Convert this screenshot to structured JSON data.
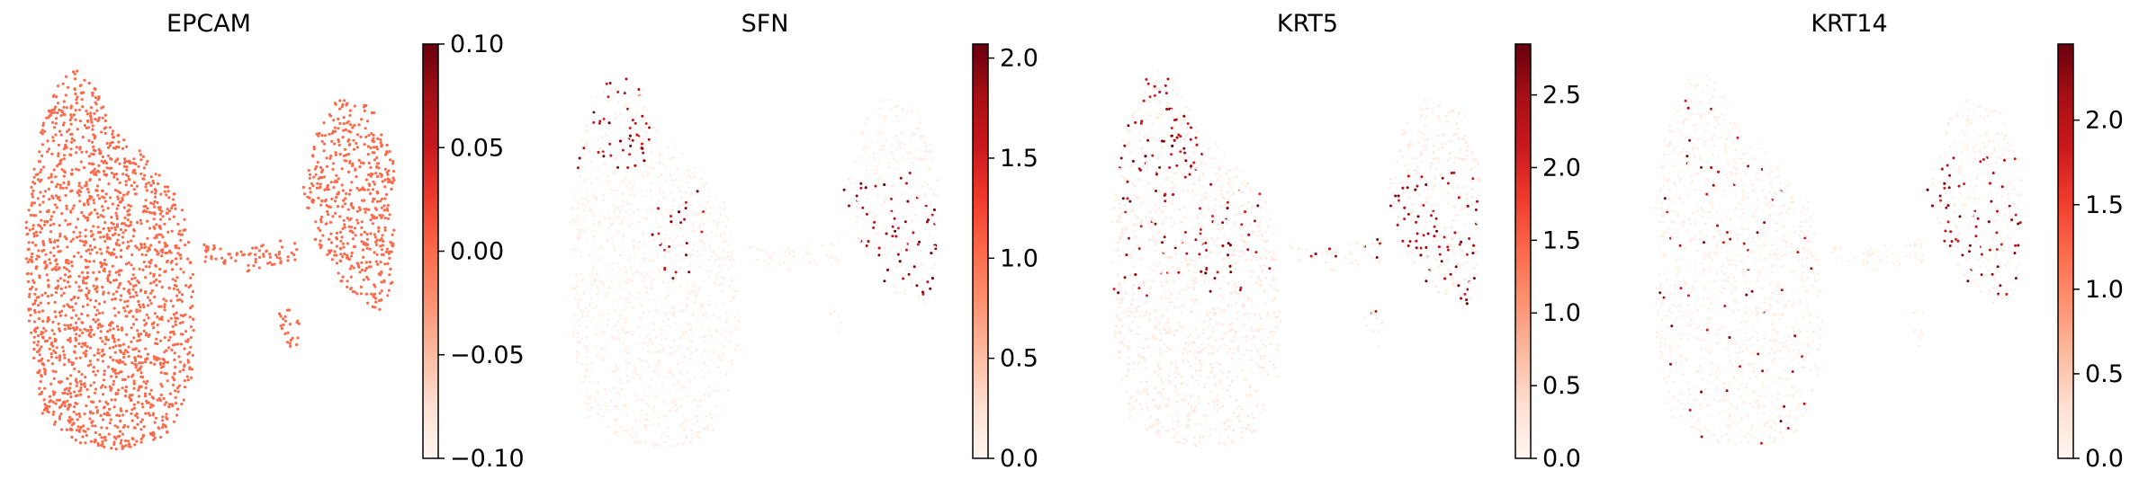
{
  "chart_data": [
    {
      "type": "scatter",
      "title": "EPCAM",
      "colormap": "Reds",
      "colorbar": {
        "vmin": -0.1,
        "vmax": 0.1,
        "ticks": [
          "0.10",
          "0.05",
          "0.00",
          "−0.05",
          "−0.10"
        ],
        "tick_values": [
          0.1,
          0.05,
          0.0,
          -0.05,
          -0.1
        ]
      },
      "expression": {
        "dominant_value": 0.0,
        "point_color": "#fb6a4a",
        "uniform": true
      },
      "xlabel": "",
      "ylabel": "",
      "axes_visible": false
    },
    {
      "type": "scatter",
      "title": "SFN",
      "colormap": "Reds",
      "colorbar": {
        "vmin": 0.0,
        "vmax": 2.07,
        "ticks": [
          "2.0",
          "1.5",
          "1.0",
          "0.5",
          "0.0"
        ],
        "tick_values": [
          2.0,
          1.5,
          1.0,
          0.5,
          0.0
        ]
      },
      "expression": {
        "dominant_value": 0.0,
        "high_value_regions": [
          "upper-left of left cluster",
          "center of right cluster"
        ],
        "uniform": false
      },
      "xlabel": "",
      "ylabel": "",
      "axes_visible": false
    },
    {
      "type": "scatter",
      "title": "KRT5",
      "colormap": "Reds",
      "colorbar": {
        "vmin": 0.0,
        "vmax": 2.85,
        "ticks": [
          "2.5",
          "2.0",
          "1.5",
          "1.0",
          "0.5",
          "0.0"
        ],
        "tick_values": [
          2.5,
          2.0,
          1.5,
          1.0,
          0.5,
          0.0
        ]
      },
      "expression": {
        "dominant_value": 0.3,
        "high_value_regions": [
          "upper-left of left cluster",
          "right cluster"
        ],
        "uniform": false
      },
      "xlabel": "",
      "ylabel": "",
      "axes_visible": false
    },
    {
      "type": "scatter",
      "title": "KRT14",
      "colormap": "Reds",
      "colorbar": {
        "vmin": 0.0,
        "vmax": 2.45,
        "ticks": [
          "2.0",
          "1.5",
          "1.0",
          "0.5",
          "0.0"
        ],
        "tick_values": [
          2.0,
          1.5,
          1.0,
          0.5,
          0.0
        ]
      },
      "expression": {
        "dominant_value": 0.0,
        "high_value_regions": [
          "right cluster"
        ],
        "uniform": false
      },
      "xlabel": "",
      "ylabel": "",
      "axes_visible": false
    }
  ]
}
